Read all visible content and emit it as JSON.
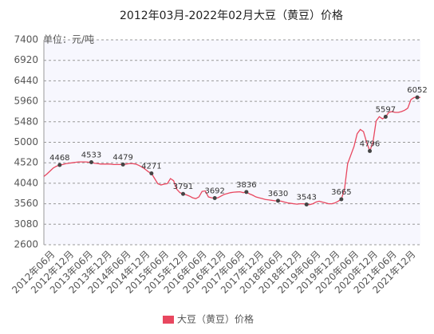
{
  "chart_data": {
    "type": "line",
    "title": "2012年03月-2022年02月大豆（黄豆）价格",
    "unit": "单位：元/吨",
    "categories": [
      null,
      null,
      null,
      "2012年06月",
      null,
      null,
      null,
      null,
      null,
      "2012年12月",
      null,
      null,
      null,
      null,
      null,
      "2013年06月",
      null,
      null,
      null,
      null,
      null,
      "2013年12月",
      null,
      null,
      null,
      null,
      null,
      "2014年06月",
      null,
      null,
      null,
      null,
      null,
      "2014年12月",
      null,
      null,
      null,
      null,
      null,
      "2015年06月",
      null,
      null,
      null,
      null,
      null,
      "2015年12月",
      null,
      null,
      null,
      null,
      null,
      "2016年06月",
      null,
      null,
      null,
      null,
      null,
      "2016年12月",
      null,
      null,
      null,
      null,
      null,
      "2017年06月",
      null,
      null,
      null,
      null,
      null,
      "2017年12月",
      null,
      null,
      null,
      null,
      null,
      "2018年06月",
      null,
      null,
      null,
      null,
      null,
      "2018年12月",
      null,
      null,
      null,
      null,
      null,
      "2019年06月",
      null,
      null,
      null,
      null,
      null,
      "2019年12月",
      null,
      null,
      null,
      null,
      null,
      "2020年06月",
      null,
      null,
      null,
      null,
      null,
      "2020年12月",
      null,
      null,
      null,
      null,
      null,
      "2021年06月",
      null,
      null,
      null,
      null,
      null,
      "2021年12月",
      null,
      null
    ],
    "series": [
      {
        "name": "大豆（黄豆）价格",
        "color": "#e8475f",
        "values": [
          4200,
          4260,
          4330,
          4400,
          4440,
          4468,
          4480,
          4500,
          4510,
          4520,
          4530,
          4540,
          4540,
          4540,
          4535,
          4533,
          4510,
          4500,
          4490,
          4490,
          4490,
          4490,
          4480,
          4480,
          4480,
          4479,
          4490,
          4500,
          4500,
          4490,
          4460,
          4420,
          4370,
          4310,
          4271,
          4150,
          4030,
          4000,
          4020,
          4030,
          4150,
          4100,
          3900,
          3820,
          3791,
          3770,
          3740,
          3700,
          3680,
          3720,
          3850,
          3860,
          3720,
          3700,
          3692,
          3700,
          3740,
          3780,
          3800,
          3820,
          3830,
          3836,
          3840,
          3820,
          3836,
          3790,
          3760,
          3720,
          3700,
          3680,
          3660,
          3650,
          3640,
          3630,
          3630,
          3620,
          3600,
          3580,
          3570,
          3560,
          3550,
          3560,
          3560,
          3543,
          3540,
          3560,
          3600,
          3620,
          3600,
          3580,
          3560,
          3560,
          3580,
          3620,
          3665,
          3900,
          4500,
          4700,
          4900,
          5200,
          5300,
          5250,
          5000,
          4796,
          5000,
          5500,
          5600,
          5550,
          5597,
          5700,
          5720,
          5700,
          5700,
          5720,
          5750,
          5800,
          6000,
          6050,
          6052,
          6050
        ]
      }
    ],
    "labeled_points": [
      5,
      15,
      25,
      34,
      44,
      54,
      64,
      74,
      83,
      94,
      103,
      108,
      118
    ],
    "marker_color": "#444444",
    "ylim": [
      2600,
      7400
    ],
    "yticks": [
      2600,
      3080,
      3560,
      4040,
      4520,
      5000,
      5480,
      5960,
      6440,
      6920,
      7400
    ],
    "grid": true,
    "legend": "bottom"
  }
}
